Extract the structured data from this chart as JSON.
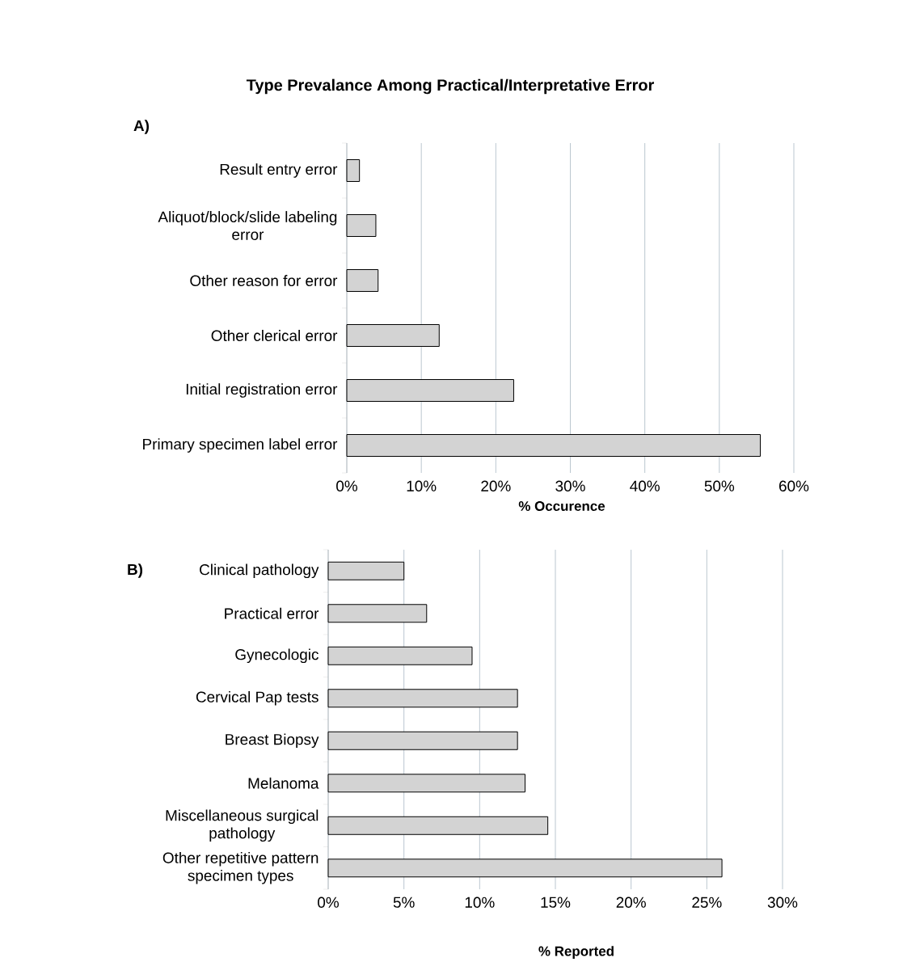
{
  "chart_data": [
    {
      "type": "bar",
      "orientation": "horizontal",
      "title": "Type Prevalance Among Practical/Interpretative Error",
      "annotations": [
        "A)"
      ],
      "xlabel": "% Occurence",
      "categories": [
        "Result entry error",
        "Aliquot/block/slide labeling error",
        "Other reason for error",
        "Other clerical error",
        "Initial registration error",
        "Primary specimen label error"
      ],
      "values": [
        1.7,
        3.9,
        4.2,
        12.4,
        22.4,
        55.5
      ],
      "color": "#d3d3d3",
      "xlim": [
        0,
        60
      ],
      "xticks": [
        {
          "value": 0,
          "label": "0%"
        },
        {
          "value": 10,
          "label": "10%"
        },
        {
          "value": 20,
          "label": "20%"
        },
        {
          "value": 30,
          "label": "30%"
        },
        {
          "value": 40,
          "label": "40%"
        },
        {
          "value": 50,
          "label": "50%"
        },
        {
          "value": 60,
          "label": "60%"
        }
      ],
      "grid": "x"
    },
    {
      "type": "bar",
      "orientation": "horizontal",
      "annotations": [
        "B)"
      ],
      "xlabel": "% Reported",
      "categories": [
        "Clinical pathology",
        "Practical error",
        "Gynecologic",
        "Cervical Pap tests",
        "Breast Biopsy",
        "Melanoma",
        "Miscellaneous surgical pathology",
        "Other repetitive pattern specimen types"
      ],
      "values": [
        5.0,
        6.5,
        9.5,
        12.5,
        12.5,
        13.0,
        14.5,
        26.0
      ],
      "color": "#d3d3d3",
      "xlim": [
        0,
        30
      ],
      "xticks": [
        {
          "value": 0,
          "label": "0%"
        },
        {
          "value": 5,
          "label": "5%"
        },
        {
          "value": 10,
          "label": "10%"
        },
        {
          "value": 15,
          "label": "15%"
        },
        {
          "value": 20,
          "label": "20%"
        },
        {
          "value": 25,
          "label": "25%"
        },
        {
          "value": 30,
          "label": "30%"
        }
      ],
      "grid": "x"
    }
  ]
}
